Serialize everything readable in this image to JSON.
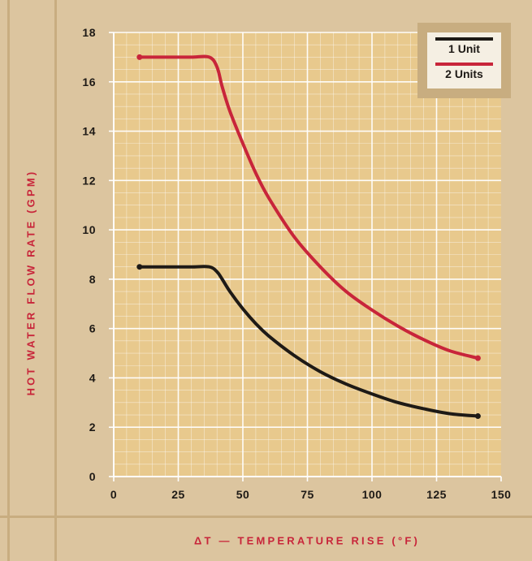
{
  "chart_data": {
    "type": "line",
    "xlabel": "ΔT — TEMPERATURE RISE (°F)",
    "ylabel": "HOT WATER FLOW RATE (GPM)",
    "xlim": [
      0,
      150
    ],
    "ylim": [
      0,
      18
    ],
    "xticks": [
      0,
      25,
      50,
      75,
      100,
      125,
      150
    ],
    "yticks": [
      0,
      2,
      4,
      6,
      8,
      10,
      12,
      14,
      16,
      18
    ],
    "grid": true,
    "legend_position": "top-right",
    "series": [
      {
        "name": "1 Unit",
        "color": "#1e1a16",
        "x": [
          10,
          20,
          30,
          37,
          40,
          42,
          45,
          50,
          55,
          60,
          70,
          80,
          90,
          100,
          110,
          120,
          130,
          141
        ],
        "y": [
          8.5,
          8.5,
          8.5,
          8.5,
          8.3,
          8.0,
          7.5,
          6.8,
          6.2,
          5.7,
          4.9,
          4.25,
          3.75,
          3.35,
          3.0,
          2.75,
          2.55,
          2.45
        ]
      },
      {
        "name": "2 Units",
        "color": "#c8253a",
        "x": [
          10,
          20,
          30,
          37,
          40,
          42,
          45,
          50,
          55,
          60,
          70,
          80,
          90,
          100,
          110,
          120,
          130,
          141
        ],
        "y": [
          17,
          17,
          17,
          17,
          16.6,
          15.8,
          14.8,
          13.5,
          12.3,
          11.3,
          9.7,
          8.5,
          7.5,
          6.75,
          6.1,
          5.55,
          5.1,
          4.8
        ]
      }
    ]
  }
}
